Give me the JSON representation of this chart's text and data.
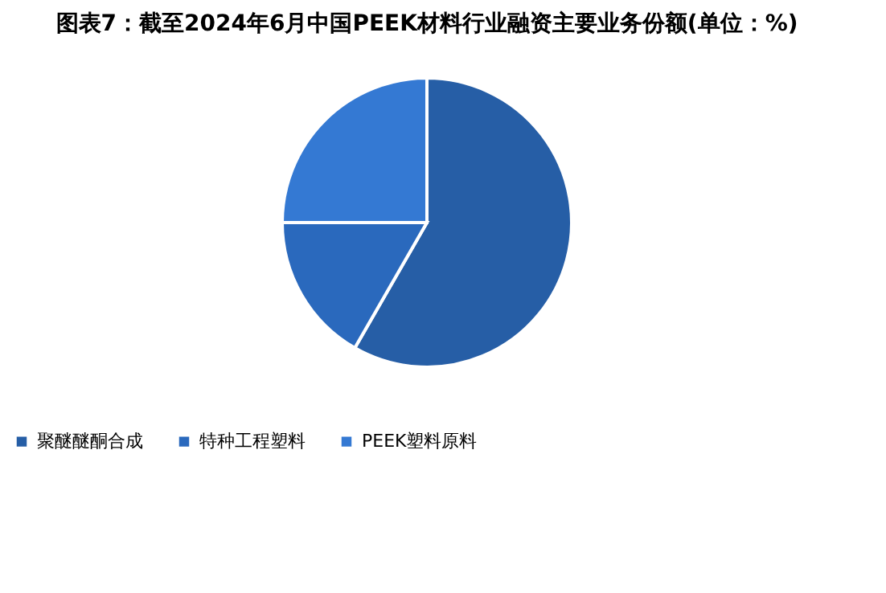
{
  "chart_data": {
    "type": "pie",
    "title": "图表7：截至2024年6月中国PEEK材料行业融资主要业务份额(单位：%)",
    "categories": [
      "聚醚醚酮合成",
      "特种工程塑料",
      "PEEK塑料原料"
    ],
    "values": [
      58.3,
      16.7,
      25
    ],
    "colors": [
      "#265ea6",
      "#2a69bd",
      "#3479d3"
    ],
    "legend": "bottom"
  }
}
